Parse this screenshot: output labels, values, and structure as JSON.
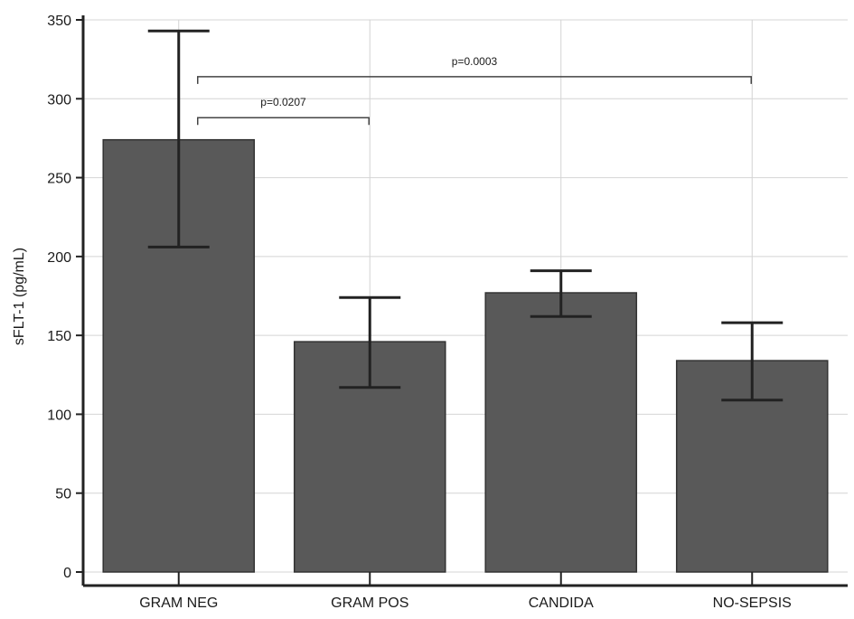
{
  "chart_data": {
    "type": "bar",
    "title": "",
    "xlabel": "",
    "ylabel": "sFLT-1 (pg/mL)",
    "ylim": [
      0,
      350
    ],
    "yticks": [
      0,
      50,
      100,
      150,
      200,
      250,
      300,
      350
    ],
    "grid": true,
    "categories": [
      "GRAM NEG",
      "GRAM POS",
      "CANDIDA",
      "NO-SEPSIS"
    ],
    "values": [
      274,
      146,
      177,
      134
    ],
    "error_low": [
      206,
      117,
      162,
      109
    ],
    "error_high": [
      343,
      174,
      191,
      158
    ],
    "bar_color": "#595959",
    "significance": [
      {
        "from": 0,
        "to": 1,
        "label": "p=0.0207",
        "y": 288
      },
      {
        "from": 0,
        "to": 3,
        "label": "p=0.0003",
        "y": 314
      }
    ]
  }
}
